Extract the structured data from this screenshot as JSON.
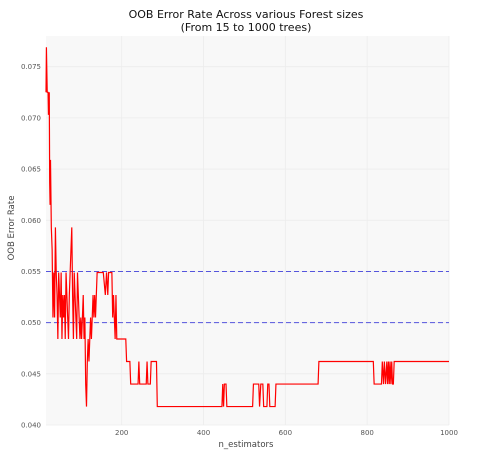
{
  "chart_data": {
    "type": "line",
    "title": "OOB Error Rate Across various Forest sizes",
    "subtitle": "(From 15 to 1000 trees)",
    "xlabel": "n_estimators",
    "ylabel": "OOB Error Rate",
    "xlim": [
      15,
      1000
    ],
    "ylim": [
      0.04,
      0.078
    ],
    "x_ticks": [
      200,
      400,
      600,
      800,
      1000
    ],
    "y_ticks": [
      0.04,
      0.045,
      0.05,
      0.055,
      0.06,
      0.065,
      0.07,
      0.075
    ],
    "x_tick_labels": [
      "200",
      "400",
      "600",
      "800",
      "1000"
    ],
    "y_tick_labels": [
      "0.040",
      "0.045",
      "0.050",
      "0.055",
      "0.060",
      "0.065",
      "0.070",
      "0.075"
    ],
    "grid": true,
    "colors": {
      "line": "#ff0000",
      "reference_lines": "#5555dd",
      "plot_bg": "#f8f8f8",
      "grid": "#ececec"
    },
    "reference_lines": [
      {
        "y": 0.055,
        "style": "dashed"
      },
      {
        "y": 0.05,
        "style": "dashed"
      }
    ],
    "series": [
      {
        "color": "#ff0000",
        "points": [
          [
            15,
            0.0725
          ],
          [
            16,
            0.0769
          ],
          [
            18,
            0.0725
          ],
          [
            20,
            0.0725
          ],
          [
            21,
            0.0703
          ],
          [
            23,
            0.0725
          ],
          [
            24,
            0.0637
          ],
          [
            25,
            0.0615
          ],
          [
            26,
            0.0659
          ],
          [
            28,
            0.0593
          ],
          [
            30,
            0.0571
          ],
          [
            32,
            0.0505
          ],
          [
            34,
            0.0549
          ],
          [
            36,
            0.0505
          ],
          [
            38,
            0.0593
          ],
          [
            40,
            0.0549
          ],
          [
            42,
            0.0527
          ],
          [
            44,
            0.0484
          ],
          [
            46,
            0.0549
          ],
          [
            48,
            0.0527
          ],
          [
            50,
            0.0505
          ],
          [
            52,
            0.0549
          ],
          [
            54,
            0.0484
          ],
          [
            56,
            0.0527
          ],
          [
            58,
            0.0505
          ],
          [
            60,
            0.0527
          ],
          [
            62,
            0.0484
          ],
          [
            64,
            0.0549
          ],
          [
            66,
            0.0527
          ],
          [
            68,
            0.0505
          ],
          [
            70,
            0.0484
          ],
          [
            72,
            0.0527
          ],
          [
            74,
            0.0549
          ],
          [
            76,
            0.0571
          ],
          [
            78,
            0.0593
          ],
          [
            80,
            0.0527
          ],
          [
            82,
            0.0484
          ],
          [
            84,
            0.0549
          ],
          [
            86,
            0.0527
          ],
          [
            88,
            0.0505
          ],
          [
            90,
            0.0484
          ],
          [
            92,
            0.0549
          ],
          [
            94,
            0.0527
          ],
          [
            96,
            0.0505
          ],
          [
            98,
            0.0484
          ],
          [
            100,
            0.0505
          ],
          [
            102,
            0.0484
          ],
          [
            104,
            0.0505
          ],
          [
            106,
            0.0527
          ],
          [
            108,
            0.0484
          ],
          [
            110,
            0.0505
          ],
          [
            112,
            0.044
          ],
          [
            114,
            0.0418
          ],
          [
            116,
            0.0462
          ],
          [
            118,
            0.0484
          ],
          [
            120,
            0.0462
          ],
          [
            122,
            0.0484
          ],
          [
            124,
            0.0505
          ],
          [
            126,
            0.0484
          ],
          [
            128,
            0.0505
          ],
          [
            130,
            0.0527
          ],
          [
            132,
            0.0505
          ],
          [
            134,
            0.0527
          ],
          [
            136,
            0.0505
          ],
          [
            138,
            0.0527
          ],
          [
            140,
            0.0549
          ],
          [
            145,
            0.0549
          ],
          [
            148,
            0.0549
          ],
          [
            150,
            0.0549
          ],
          [
            155,
            0.0549
          ],
          [
            160,
            0.0527
          ],
          [
            163,
            0.0549
          ],
          [
            166,
            0.0527
          ],
          [
            168,
            0.0549
          ],
          [
            172,
            0.0549
          ],
          [
            176,
            0.0549
          ],
          [
            178,
            0.0505
          ],
          [
            180,
            0.0527
          ],
          [
            182,
            0.0505
          ],
          [
            184,
            0.0484
          ],
          [
            186,
            0.0527
          ],
          [
            188,
            0.0484
          ],
          [
            190,
            0.0484
          ],
          [
            200,
            0.0484
          ],
          [
            210,
            0.0484
          ],
          [
            212,
            0.0462
          ],
          [
            220,
            0.0462
          ],
          [
            222,
            0.044
          ],
          [
            240,
            0.044
          ],
          [
            242,
            0.0462
          ],
          [
            244,
            0.044
          ],
          [
            260,
            0.044
          ],
          [
            262,
            0.0462
          ],
          [
            264,
            0.044
          ],
          [
            270,
            0.044
          ],
          [
            272,
            0.0462
          ],
          [
            285,
            0.0462
          ],
          [
            287,
            0.0418
          ],
          [
            320,
            0.0418
          ],
          [
            400,
            0.0418
          ],
          [
            445,
            0.0418
          ],
          [
            447,
            0.044
          ],
          [
            449,
            0.0418
          ],
          [
            451,
            0.044
          ],
          [
            455,
            0.044
          ],
          [
            457,
            0.0418
          ],
          [
            460,
            0.0418
          ],
          [
            520,
            0.0418
          ],
          [
            522,
            0.044
          ],
          [
            535,
            0.044
          ],
          [
            537,
            0.0418
          ],
          [
            540,
            0.044
          ],
          [
            545,
            0.044
          ],
          [
            547,
            0.0418
          ],
          [
            555,
            0.0418
          ],
          [
            557,
            0.044
          ],
          [
            560,
            0.044
          ],
          [
            562,
            0.0418
          ],
          [
            575,
            0.0418
          ],
          [
            577,
            0.044
          ],
          [
            680,
            0.044
          ],
          [
            682,
            0.0462
          ],
          [
            815,
            0.0462
          ],
          [
            817,
            0.044
          ],
          [
            835,
            0.044
          ],
          [
            837,
            0.0462
          ],
          [
            840,
            0.044
          ],
          [
            842,
            0.0462
          ],
          [
            845,
            0.044
          ],
          [
            848,
            0.0462
          ],
          [
            850,
            0.044
          ],
          [
            852,
            0.0462
          ],
          [
            854,
            0.044
          ],
          [
            856,
            0.0462
          ],
          [
            858,
            0.044
          ],
          [
            860,
            0.0462
          ],
          [
            862,
            0.044
          ],
          [
            864,
            0.044
          ],
          [
            866,
            0.0462
          ],
          [
            900,
            0.0462
          ],
          [
            950,
            0.0462
          ],
          [
            1000,
            0.0462
          ]
        ]
      }
    ]
  }
}
